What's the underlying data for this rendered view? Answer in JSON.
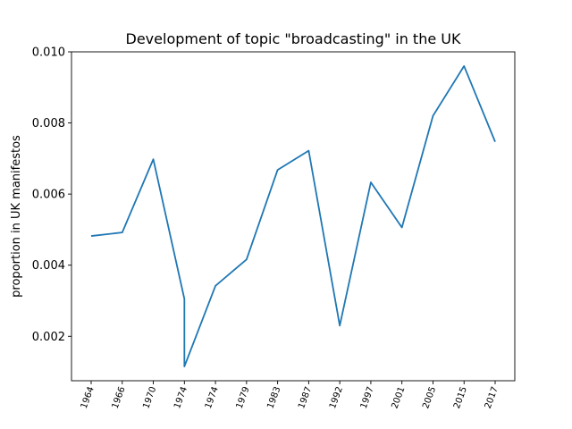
{
  "chart_data": {
    "type": "line",
    "title": "Development of topic \"broadcasting\" in the UK",
    "xlabel": "",
    "ylabel": "proportion in UK manifestos",
    "categories": [
      "1964",
      "1966",
      "1970",
      "1974",
      "1974",
      "1979",
      "1983",
      "1987",
      "1992",
      "1997",
      "2001",
      "2005",
      "2015",
      "2017"
    ],
    "series": [
      {
        "color": "#1f77b4",
        "points": [
          {
            "x": "1964",
            "y": 0.00482
          },
          {
            "x": "1966",
            "y": 0.00492
          },
          {
            "x": "1970",
            "y": 0.00698
          },
          {
            "x": "1974",
            "y": 0.00305
          },
          {
            "x": "1974",
            "y": 0.00115
          },
          {
            "x": "1974",
            "y": 0.00342
          },
          {
            "x": "1979",
            "y": 0.00416
          },
          {
            "x": "1983",
            "y": 0.00668
          },
          {
            "x": "1987",
            "y": 0.00722
          },
          {
            "x": "1992",
            "y": 0.0023
          },
          {
            "x": "1997",
            "y": 0.00633
          },
          {
            "x": "2001",
            "y": 0.00506
          },
          {
            "x": "2005",
            "y": 0.0082
          },
          {
            "x": "2015",
            "y": 0.0096
          },
          {
            "x": "2017",
            "y": 0.00747
          }
        ]
      }
    ],
    "yticks": [
      "0.002",
      "0.004",
      "0.006",
      "0.008",
      "0.010"
    ],
    "ylim": [
      0.00075,
      0.01
    ],
    "grid": false,
    "legend": "none"
  }
}
